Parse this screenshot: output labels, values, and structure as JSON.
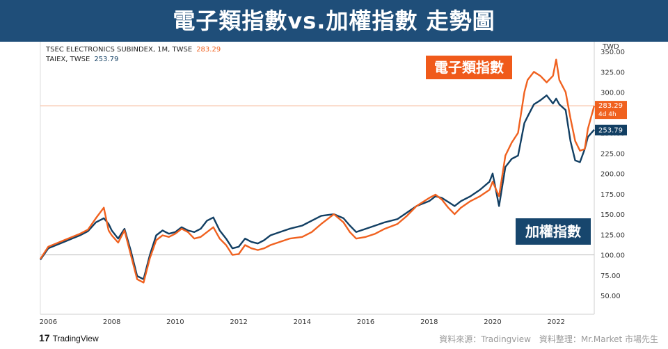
{
  "header": {
    "title": "電子類指數vs.加權指數  走勢圖"
  },
  "legend": {
    "electronics_name": "TSEC ELECTRONICS SUBINDEX, 1M, TWSE",
    "electronics_value": "283.29",
    "taiex_name": "TAIEX, TWSE",
    "taiex_value": "253.79"
  },
  "axis": {
    "unit": "TWD"
  },
  "callouts": {
    "electronics": "電子類指數",
    "taiex": "加權指數"
  },
  "price_tags": {
    "electronics": "283.29",
    "electronics_sub": "4d 4h",
    "taiex": "253.79"
  },
  "branding": {
    "logo": "17",
    "name": "TradingView"
  },
  "credit": "資料來源：Tradingview　資料整理：Mr.Market 市場先生",
  "colors": {
    "electronics": "#f0611f",
    "taiex": "#123f63",
    "header": "#1f4e79"
  },
  "chart_data": {
    "type": "line",
    "x_label": "",
    "y_label": "",
    "xlim": [
      2005.75,
      2023.2
    ],
    "ylim": [
      27,
      362
    ],
    "y_ticks": [
      50,
      75,
      100,
      125,
      150,
      175,
      200,
      225,
      250,
      275,
      300,
      325,
      350
    ],
    "x_ticks": [
      2006,
      2008,
      2010,
      2012,
      2014,
      2016,
      2018,
      2020,
      2022
    ],
    "baseline": 100,
    "reference_line": 283.29,
    "grid": false,
    "series": [
      {
        "name": "TSEC ELECTRONICS SUBINDEX",
        "x": [
          2005.75,
          2006.0,
          2006.25,
          2006.5,
          2006.75,
          2007.0,
          2007.25,
          2007.5,
          2007.75,
          2007.9,
          2008.0,
          2008.2,
          2008.4,
          2008.6,
          2008.8,
          2009.0,
          2009.2,
          2009.4,
          2009.6,
          2009.8,
          2010.0,
          2010.2,
          2010.4,
          2010.6,
          2010.8,
          2011.0,
          2011.2,
          2011.4,
          2011.6,
          2011.8,
          2012.0,
          2012.2,
          2012.4,
          2012.6,
          2012.8,
          2013.0,
          2013.3,
          2013.6,
          2014.0,
          2014.3,
          2014.6,
          2015.0,
          2015.3,
          2015.5,
          2015.7,
          2016.0,
          2016.3,
          2016.6,
          2017.0,
          2017.3,
          2017.6,
          2018.0,
          2018.2,
          2018.4,
          2018.6,
          2018.8,
          2019.0,
          2019.3,
          2019.6,
          2019.9,
          2020.0,
          2020.2,
          2020.4,
          2020.6,
          2020.8,
          2021.0,
          2021.1,
          2021.3,
          2021.5,
          2021.7,
          2021.9,
          2022.0,
          2022.1,
          2022.3,
          2022.45,
          2022.6,
          2022.75,
          2022.9,
          2023.0,
          2023.2
        ],
        "y": [
          95,
          110,
          114,
          118,
          122,
          126,
          131,
          145,
          158,
          130,
          124,
          115,
          130,
          100,
          70,
          66,
          96,
          118,
          124,
          122,
          126,
          132,
          128,
          120,
          122,
          128,
          134,
          120,
          112,
          100,
          101,
          112,
          108,
          106,
          108,
          112,
          116,
          120,
          122,
          128,
          138,
          150,
          140,
          128,
          120,
          122,
          126,
          132,
          138,
          148,
          160,
          170,
          174,
          168,
          158,
          150,
          158,
          166,
          172,
          180,
          190,
          172,
          222,
          238,
          250,
          300,
          315,
          325,
          320,
          312,
          320,
          340,
          315,
          300,
          268,
          240,
          228,
          230,
          255,
          283.29
        ]
      },
      {
        "name": "TAIEX",
        "x": [
          2005.75,
          2006.0,
          2006.25,
          2006.5,
          2006.75,
          2007.0,
          2007.25,
          2007.5,
          2007.75,
          2007.9,
          2008.0,
          2008.2,
          2008.4,
          2008.6,
          2008.8,
          2009.0,
          2009.2,
          2009.4,
          2009.6,
          2009.8,
          2010.0,
          2010.2,
          2010.4,
          2010.6,
          2010.8,
          2011.0,
          2011.2,
          2011.4,
          2011.6,
          2011.8,
          2012.0,
          2012.2,
          2012.4,
          2012.6,
          2012.8,
          2013.0,
          2013.3,
          2013.6,
          2014.0,
          2014.3,
          2014.6,
          2015.0,
          2015.3,
          2015.5,
          2015.7,
          2016.0,
          2016.3,
          2016.6,
          2017.0,
          2017.3,
          2017.6,
          2018.0,
          2018.2,
          2018.4,
          2018.6,
          2018.8,
          2019.0,
          2019.3,
          2019.6,
          2019.9,
          2020.0,
          2020.2,
          2020.4,
          2020.6,
          2020.8,
          2021.0,
          2021.1,
          2021.3,
          2021.5,
          2021.7,
          2021.9,
          2022.0,
          2022.1,
          2022.3,
          2022.45,
          2022.6,
          2022.75,
          2022.9,
          2023.0,
          2023.2
        ],
        "y": [
          94,
          108,
          112,
          116,
          120,
          124,
          129,
          140,
          145,
          138,
          130,
          120,
          132,
          105,
          74,
          70,
          100,
          124,
          130,
          126,
          128,
          134,
          130,
          128,
          132,
          142,
          146,
          130,
          120,
          108,
          110,
          120,
          116,
          114,
          118,
          124,
          128,
          132,
          136,
          142,
          148,
          150,
          145,
          136,
          128,
          132,
          136,
          140,
          144,
          152,
          160,
          166,
          172,
          170,
          165,
          160,
          166,
          172,
          180,
          190,
          200,
          160,
          208,
          218,
          222,
          262,
          270,
          285,
          290,
          296,
          286,
          292,
          285,
          278,
          240,
          216,
          214,
          230,
          245,
          253.79
        ]
      }
    ]
  }
}
